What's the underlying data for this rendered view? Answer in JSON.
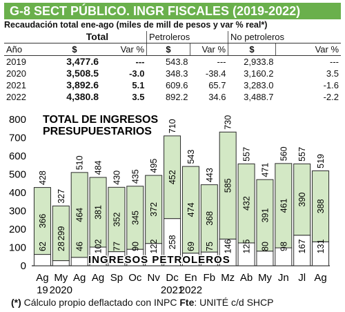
{
  "header": {
    "title": "G-8   SECT PÚBLICO. INGR FISCALES (2019-2022)",
    "subtitle": "Recaudación total ene-ago (miles de mill de pesos y var % real*)"
  },
  "summary_table": {
    "group_headers": [
      "Total",
      "Petroleros",
      "No petroleros"
    ],
    "col_headers": [
      "Año",
      "$",
      "Var %",
      "$",
      "Var %",
      "$",
      "Var %"
    ],
    "rows": [
      {
        "year": "2019",
        "total": "3,477.6",
        "total_var": "---",
        "pet": "543.8",
        "pet_var": "---",
        "nopet": "2,933.8",
        "nopet_var": "---"
      },
      {
        "year": "2020",
        "total": "3,508.5",
        "total_var": "-3.0",
        "pet": "348.3",
        "pet_var": "-38.4",
        "nopet": "3,160.2",
        "nopet_var": "3.5"
      },
      {
        "year": "2021",
        "total": "3,892.6",
        "total_var": "5.1",
        "pet": "609.6",
        "pet_var": "65.7",
        "nopet": "3,283.0",
        "nopet_var": "-1.6"
      },
      {
        "year": "2022",
        "total": "4,380.8",
        "total_var": "3.5",
        "pet": "892.2",
        "pet_var": "34.6",
        "nopet": "3,488.7",
        "nopet_var": "-2.2"
      }
    ]
  },
  "chart_data": {
    "type": "bar",
    "title": "TOTAL DE INGRESOS PRESUPUESTARIOS",
    "inner_label": "INGRESOS PETROLEROS",
    "categories": [
      "Ag",
      "My",
      "Ag",
      "Ag",
      "Sp",
      "Oc",
      "Nv",
      "Dc",
      "En",
      "Fb",
      "Mz",
      "Ab",
      "My",
      "Jn",
      "Jl",
      "Ag"
    ],
    "year_labels": [
      {
        "index": 0,
        "label": "19"
      },
      {
        "index": 1,
        "label": "2020"
      },
      {
        "index": 7,
        "label": "2021"
      },
      {
        "index": 8,
        "label": "2022"
      }
    ],
    "ylim": [
      0,
      800
    ],
    "yticks": [
      0,
      100,
      200,
      300,
      400,
      500,
      600,
      700,
      800
    ],
    "grid": false,
    "series": [
      {
        "values": [
          62,
          28,
          46,
          102,
          77,
          90,
          122,
          258,
          69,
          75,
          146,
          125,
          80,
          98,
          167,
          131
        ]
      },
      {
        "values": [
          366,
          299,
          464,
          381,
          352,
          345,
          372,
          452,
          474,
          368,
          585,
          432,
          391,
          461,
          390,
          388
        ]
      }
    ],
    "totals": [
      428,
      327,
      510,
      484,
      430,
      435,
      495,
      710,
      543,
      443,
      730,
      557,
      471,
      560,
      557,
      519
    ],
    "colors": {
      "petroleros": "#ffffff",
      "no_petroleros": "#d3e8c5",
      "border": "#2a2a2a"
    }
  },
  "footnote": {
    "asterisk": "(*)",
    "text1": " Cálculo propio deflactado con INPC ",
    "fte": "Fte",
    "text2": ": UNITÉ c/d SHCP"
  }
}
